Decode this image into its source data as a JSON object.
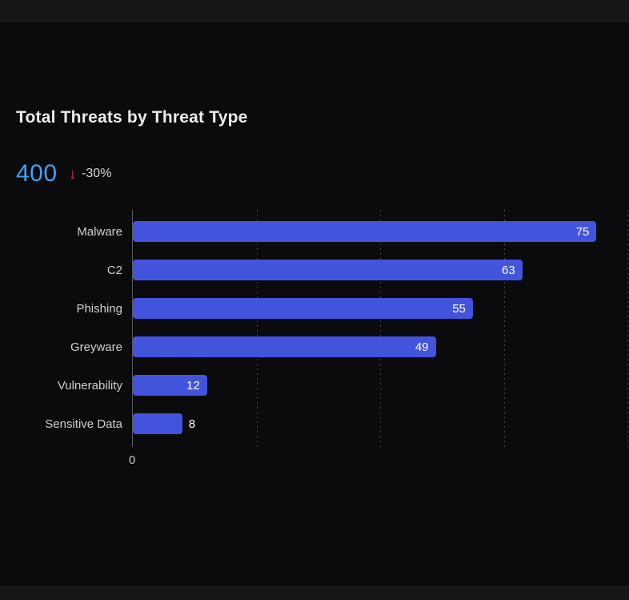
{
  "card": {
    "title": "Total Threats by Threat Type",
    "kpi": {
      "value": "400",
      "trend_arrow": "↓",
      "trend_direction": "down",
      "trend_label": "-30%"
    }
  },
  "chart_data": {
    "type": "bar",
    "orientation": "horizontal",
    "title": "Total Threats by Threat Type",
    "categories": [
      "Malware",
      "C2",
      "Phishing",
      "Greyware",
      "Vulnerability",
      "Sensitive Data"
    ],
    "values": [
      75,
      63,
      55,
      49,
      12,
      8
    ],
    "xlabel": "",
    "ylabel": "",
    "xlim": [
      0,
      80
    ],
    "x_tick_labels_visible": [
      "0"
    ],
    "gridlines": {
      "positions": [
        20,
        40,
        60,
        80
      ],
      "style": "dotted",
      "orientation": "vertical"
    },
    "legend": "none",
    "bar_color": "#4354DC",
    "value_label_color": "#FFFFFF",
    "value_label_placement": "inside-end, outside for smallest bar"
  },
  "colors": {
    "background": "#161618",
    "card_background": "#0B0B0D",
    "title_text": "#ECECEC",
    "kpi_value": "#42A1F2",
    "trend_accent": "#C7275F",
    "trend_text": "#D6D6D6",
    "axis_line": "#5C5C63",
    "gridline": "#73737B",
    "category_label": "#CFCFCF",
    "tick_label": "#C6C6C6"
  }
}
